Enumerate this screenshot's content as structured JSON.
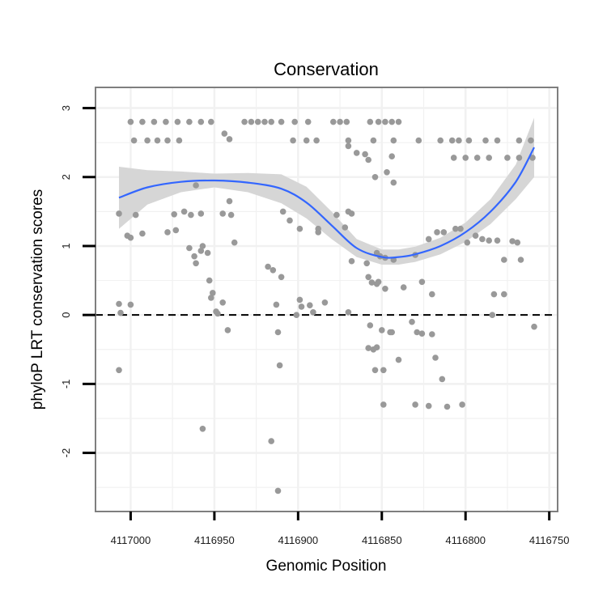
{
  "chart_data": {
    "type": "scatter",
    "title": "Conservation",
    "xlabel": "Genomic Position",
    "ylabel": "phyloP LRT conservation scores",
    "x_reversed": true,
    "xlim": [
      4117021,
      4116745
    ],
    "ylim": [
      -2.85,
      3.3
    ],
    "x_ticks": [
      4117000,
      4116950,
      4116900,
      4116850,
      4116800,
      4116750
    ],
    "x_tick_labels": [
      "4117000",
      "4116950",
      "4116900",
      "4116850",
      "4116800",
      "4116750"
    ],
    "y_ticks": [
      -2,
      -1,
      0,
      1,
      2,
      3
    ],
    "y_tick_labels": [
      "-2",
      "-1",
      "0",
      "1",
      "2",
      "3"
    ],
    "reference_line": {
      "y": 0,
      "style": "dashed",
      "color": "#000000"
    },
    "grid": true,
    "colors": {
      "points": "#999999",
      "smooth_line": "#3366ff",
      "ribbon": "#d6d6d6",
      "grid": "#f1f1f1",
      "frame": "#7f7f7f"
    },
    "smooth": {
      "method": "loess",
      "x": [
        4117007,
        4116990,
        4116970,
        4116950,
        4116930,
        4116910,
        4116895,
        4116880,
        4116865,
        4116850,
        4116840,
        4116830,
        4116815,
        4116800,
        4116785,
        4116770,
        4116759
      ],
      "y": [
        1.7,
        1.85,
        1.93,
        1.95,
        1.92,
        1.83,
        1.63,
        1.3,
        0.97,
        0.84,
        0.84,
        0.88,
        1.0,
        1.2,
        1.5,
        1.93,
        2.43
      ],
      "lower": [
        1.25,
        1.6,
        1.78,
        1.85,
        1.78,
        1.62,
        1.4,
        1.1,
        0.84,
        0.73,
        0.73,
        0.77,
        0.88,
        1.06,
        1.32,
        1.68,
        2.0
      ],
      "upper": [
        2.15,
        2.1,
        2.08,
        2.05,
        2.06,
        2.04,
        1.86,
        1.5,
        1.1,
        0.95,
        0.95,
        0.99,
        1.12,
        1.34,
        1.68,
        2.18,
        2.86
      ]
    },
    "points": [
      [
        4117000,
        2.8
      ],
      [
        4116993,
        2.8
      ],
      [
        4116986,
        2.8
      ],
      [
        4116979,
        2.8
      ],
      [
        4116972,
        2.8
      ],
      [
        4116965,
        2.8
      ],
      [
        4116958,
        2.8
      ],
      [
        4116952,
        2.8
      ],
      [
        4116932,
        2.8
      ],
      [
        4116928,
        2.8
      ],
      [
        4116924,
        2.8
      ],
      [
        4116920,
        2.8
      ],
      [
        4116916,
        2.8
      ],
      [
        4116910,
        2.8
      ],
      [
        4116902,
        2.8
      ],
      [
        4116894,
        2.8
      ],
      [
        4116879,
        2.8
      ],
      [
        4116875,
        2.8
      ],
      [
        4116871,
        2.8
      ],
      [
        4116857,
        2.8
      ],
      [
        4116852,
        2.8
      ],
      [
        4116848,
        2.8
      ],
      [
        4116844,
        2.8
      ],
      [
        4116840,
        2.8
      ],
      [
        4116998,
        2.53
      ],
      [
        4116990,
        2.53
      ],
      [
        4116984,
        2.53
      ],
      [
        4116978,
        2.53
      ],
      [
        4116971,
        2.53
      ],
      [
        4116903,
        2.53
      ],
      [
        4116895,
        2.53
      ],
      [
        4116889,
        2.53
      ],
      [
        4116870,
        2.53
      ],
      [
        4116855,
        2.53
      ],
      [
        4116843,
        2.53
      ],
      [
        4116828,
        2.53
      ],
      [
        4116815,
        2.53
      ],
      [
        4116808,
        2.53
      ],
      [
        4116804,
        2.53
      ],
      [
        4116798,
        2.53
      ],
      [
        4116788,
        2.53
      ],
      [
        4116781,
        2.53
      ],
      [
        4116768,
        2.53
      ],
      [
        4116761,
        2.53
      ],
      [
        4116807,
        2.28
      ],
      [
        4116800,
        2.28
      ],
      [
        4116793,
        2.28
      ],
      [
        4116786,
        2.28
      ],
      [
        4116775,
        2.28
      ],
      [
        4116768,
        2.28
      ],
      [
        4116760,
        2.28
      ],
      [
        4116944,
        2.63
      ],
      [
        4116941,
        2.55
      ],
      [
        4116870,
        2.45
      ],
      [
        4116865,
        2.35
      ],
      [
        4116860,
        2.33
      ],
      [
        4116858,
        2.25
      ],
      [
        4116844,
        2.3
      ],
      [
        4116854,
        2.0
      ],
      [
        4116847,
        2.07
      ],
      [
        4116843,
        1.92
      ],
      [
        4117007,
        1.47
      ],
      [
        4116997,
        1.45
      ],
      [
        4117002,
        1.15
      ],
      [
        4117000,
        1.12
      ],
      [
        4116993,
        1.18
      ],
      [
        4116974,
        1.46
      ],
      [
        4116968,
        1.5
      ],
      [
        4116964,
        1.45
      ],
      [
        4116958,
        1.47
      ],
      [
        4116945,
        1.47
      ],
      [
        4116938,
        1.05
      ],
      [
        4116978,
        1.2
      ],
      [
        4116973,
        1.23
      ],
      [
        4116961,
        1.88
      ],
      [
        4116941,
        1.65
      ],
      [
        4116940,
        1.45
      ],
      [
        4116965,
        0.97
      ],
      [
        4116962,
        0.85
      ],
      [
        4116961,
        0.75
      ],
      [
        4116958,
        0.93
      ],
      [
        4116957,
        1.0
      ],
      [
        4116954,
        0.9
      ],
      [
        4116918,
        0.7
      ],
      [
        4116915,
        0.65
      ],
      [
        4116909,
        1.5
      ],
      [
        4116905,
        1.37
      ],
      [
        4116899,
        1.25
      ],
      [
        4116888,
        1.25
      ],
      [
        4116888,
        1.2
      ],
      [
        4116877,
        1.45
      ],
      [
        4116872,
        1.27
      ],
      [
        4116870,
        1.5
      ],
      [
        4116868,
        1.47
      ],
      [
        4116868,
        0.78
      ],
      [
        4116859,
        0.75
      ],
      [
        4116853,
        0.9
      ],
      [
        4116851,
        0.85
      ],
      [
        4116848,
        0.83
      ],
      [
        4116843,
        0.8
      ],
      [
        4116830,
        0.87
      ],
      [
        4116822,
        1.1
      ],
      [
        4116817,
        1.2
      ],
      [
        4116813,
        1.2
      ],
      [
        4116806,
        1.25
      ],
      [
        4116803,
        1.25
      ],
      [
        4116799,
        1.05
      ],
      [
        4116794,
        1.15
      ],
      [
        4116790,
        1.1
      ],
      [
        4116786,
        1.08
      ],
      [
        4116781,
        1.08
      ],
      [
        4116777,
        0.8
      ],
      [
        4116772,
        1.07
      ],
      [
        4116769,
        1.05
      ],
      [
        4116767,
        0.8
      ],
      [
        4117007,
        0.16
      ],
      [
        4117006,
        0.03
      ],
      [
        4117000,
        0.15
      ],
      [
        4117007,
        -0.8
      ],
      [
        4116953,
        0.5
      ],
      [
        4116952,
        0.25
      ],
      [
        4116951,
        0.32
      ],
      [
        4116949,
        0.05
      ],
      [
        4116948,
        0.02
      ],
      [
        4116942,
        -0.22
      ],
      [
        4116945,
        0.18
      ],
      [
        4116913,
        0.15
      ],
      [
        4116912,
        -0.25
      ],
      [
        4116911,
        -0.73
      ],
      [
        4116910,
        0.55
      ],
      [
        4116901,
        0.0
      ],
      [
        4116899,
        0.22
      ],
      [
        4116898,
        0.12
      ],
      [
        4116893,
        0.14
      ],
      [
        4116891,
        0.04
      ],
      [
        4116884,
        0.18
      ],
      [
        4116870,
        0.04
      ],
      [
        4116853,
        0.45
      ],
      [
        4116848,
        0.38
      ],
      [
        4116858,
        0.55
      ],
      [
        4116856,
        0.47
      ],
      [
        4116852,
        0.48
      ],
      [
        4116826,
        0.48
      ],
      [
        4116837,
        0.4
      ],
      [
        4116820,
        0.3
      ],
      [
        4116858,
        -0.48
      ],
      [
        4116855,
        -0.5
      ],
      [
        4116853,
        -0.47
      ],
      [
        4116849,
        -0.8
      ],
      [
        4116857,
        -0.15
      ],
      [
        4116850,
        -0.22
      ],
      [
        4116845,
        -0.25
      ],
      [
        4116844,
        -0.25
      ],
      [
        4116840,
        -0.65
      ],
      [
        4116832,
        -0.1
      ],
      [
        4116829,
        -0.25
      ],
      [
        4116826,
        -0.27
      ],
      [
        4116820,
        -0.28
      ],
      [
        4116818,
        -0.62
      ],
      [
        4116814,
        -0.93
      ],
      [
        4116802,
        -1.3
      ],
      [
        4116777,
        0.3
      ],
      [
        4116783,
        0.3
      ],
      [
        4116784,
        0.0
      ],
      [
        4116759,
        -0.17
      ],
      [
        4116957,
        -1.65
      ],
      [
        4116916,
        -1.83
      ],
      [
        4116912,
        -2.55
      ],
      [
        4116854,
        -0.8
      ],
      [
        4116849,
        -1.3
      ],
      [
        4116830,
        -1.3
      ],
      [
        4116822,
        -1.32
      ],
      [
        4116811,
        -1.33
      ]
    ]
  }
}
